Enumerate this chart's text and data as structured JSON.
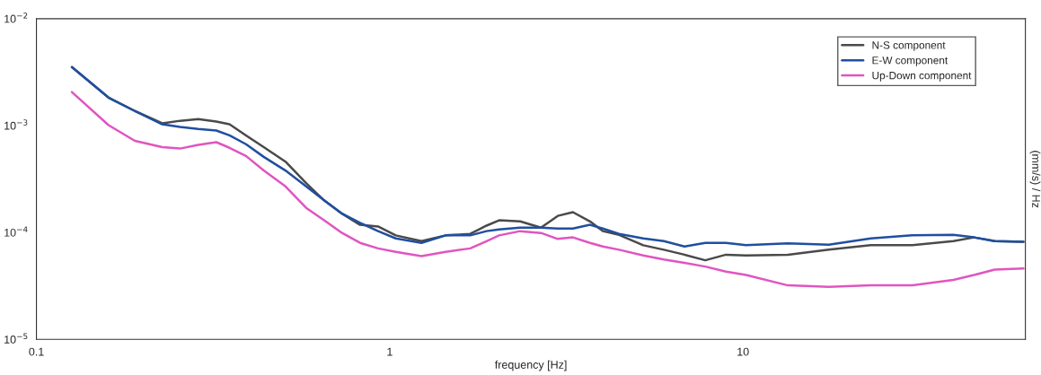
{
  "chart_data": {
    "type": "line",
    "xlabel": "frequency [Hz]",
    "ylabel": "(mm/s) / Hz",
    "log": "xy",
    "grid": false,
    "legend": "top right",
    "marker": "none",
    "line_style": "solid",
    "xlim": [
      0.1,
      63
    ],
    "xticks": [
      {
        "value": 0.1,
        "label": "0.1"
      },
      1,
      10
    ],
    "ylim": [
      1e-05,
      0.01
    ],
    "yticks": [
      {
        "value": 0.01,
        "label": "10$^{−2}$"
      },
      {
        "value": 0.001,
        "label": "10$^{−3}$"
      },
      {
        "value": 0.0001,
        "label": "10$^{−4}$"
      },
      {
        "value": 1e-05,
        "label": "10$^{−5}$"
      }
    ],
    "x": [
      0.126,
      0.16,
      0.19,
      0.227,
      0.255,
      0.287,
      0.323,
      0.352,
      0.392,
      0.44,
      0.507,
      0.58,
      0.652,
      0.733,
      0.824,
      0.927,
      1.04,
      1.23,
      1.44,
      1.69,
      1.88,
      2.04,
      2.34,
      2.68,
      2.99,
      3.3,
      3.69,
      4.01,
      4.46,
      5.22,
      5.97,
      6.83,
      7.82,
      8.95,
      10.2,
      13.4,
      17.5,
      23.0,
      30.1,
      39.4,
      45.1,
      51.6,
      62.2
    ],
    "series": [
      {
        "name": "N-S component",
        "color": "#4a4a4a",
        "values": [
          0.00353,
          0.00183,
          0.00137,
          0.00105,
          0.00111,
          0.00115,
          0.00109,
          0.00103,
          0.00081,
          0.00063,
          0.00046,
          0.00029,
          0.0002,
          0.00015,
          0.000118,
          0.000114,
          9.4e-05,
          8.3e-05,
          9.4e-05,
          9.7e-05,
          0.000116,
          0.00013,
          0.000127,
          0.000111,
          0.000143,
          0.000155,
          0.000127,
          0.000103,
          9.5e-05,
          7.6e-05,
          6.9e-05,
          6.2e-05,
          5.5e-05,
          6.2e-05,
          6.1e-05,
          6.2e-05,
          6.9e-05,
          7.6e-05,
          7.6e-05,
          8.3e-05,
          9e-05,
          8.3e-05,
          8.2e-05
        ]
      },
      {
        "name": "E-W component",
        "color": "#1f4fa0",
        "values": [
          0.00353,
          0.00183,
          0.00137,
          0.00103,
          0.00097,
          0.00093,
          0.0009,
          0.00081,
          0.00067,
          0.00051,
          0.00038,
          0.00027,
          0.0002,
          0.00015,
          0.000123,
          0.000103,
          8.8e-05,
          8e-05,
          9.4e-05,
          9.4e-05,
          0.000103,
          0.000107,
          0.000111,
          0.000111,
          0.000109,
          0.000109,
          0.000118,
          0.000109,
          9.7e-05,
          8.8e-05,
          8.3e-05,
          7.4e-05,
          8e-05,
          8e-05,
          7.6e-05,
          7.9e-05,
          7.7e-05,
          8.8e-05,
          9.4e-05,
          9.5e-05,
          9e-05,
          8.3e-05,
          8.2e-05
        ]
      },
      {
        "name": "Up-Down component",
        "color": "#e055c0",
        "values": [
          0.00206,
          0.00101,
          0.00072,
          0.00063,
          0.00061,
          0.00066,
          0.0007,
          0.00062,
          0.00052,
          0.00038,
          0.00027,
          0.00017,
          0.00013,
          9.9e-05,
          8e-05,
          7.1e-05,
          6.6e-05,
          6e-05,
          6.6e-05,
          7.1e-05,
          8.3e-05,
          9.4e-05,
          0.000103,
          9.9e-05,
          8.7e-05,
          9e-05,
          8e-05,
          7.4e-05,
          6.9e-05,
          6.1e-05,
          5.6e-05,
          5.2e-05,
          4.8e-05,
          4.3e-05,
          4e-05,
          3.2e-05,
          3.1e-05,
          3.2e-05,
          3.2e-05,
          3.6e-05,
          4e-05,
          4.5e-05,
          4.6e-05
        ]
      }
    ]
  }
}
